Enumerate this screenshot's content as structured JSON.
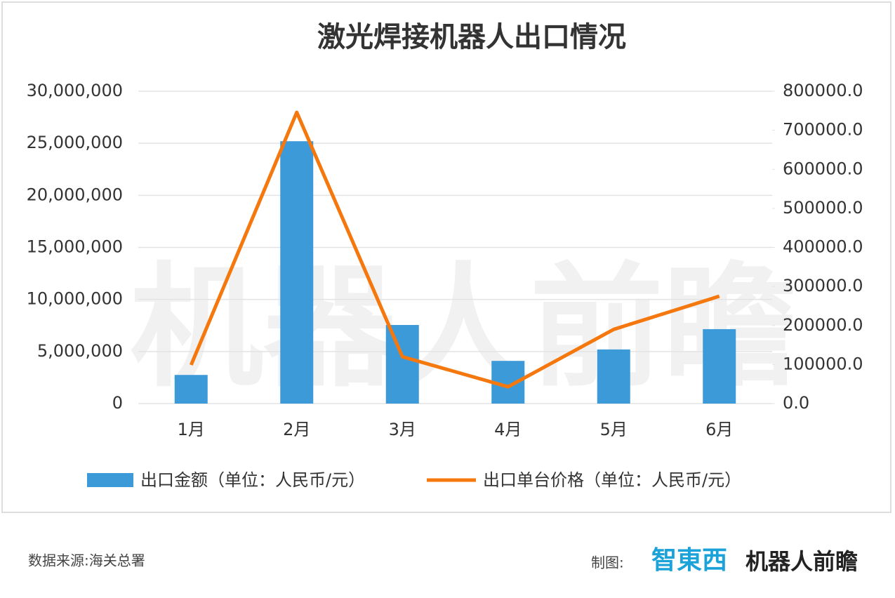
{
  "chart_data": {
    "type": "bar-line",
    "title": "激光焊接机器人出口情况",
    "categories": [
      "1月",
      "2月",
      "3月",
      "4月",
      "5月",
      "6月"
    ],
    "series": [
      {
        "name": "出口金额（单位：人民币/元）",
        "type": "bar",
        "color": "#3d9ad8",
        "values": [
          2750000,
          25200000,
          7550000,
          4100000,
          5200000,
          7150000
        ]
      },
      {
        "name": "出口单台价格（单位：人民币/元）",
        "type": "line",
        "axis": "y2",
        "color": "#f5780f",
        "values": [
          99000,
          746000,
          120000,
          43000,
          190000,
          275000
        ]
      }
    ],
    "ylim": [
      0,
      30000000
    ],
    "yticks": [
      0,
      {
        "value": 5000000,
        "label": "5,000,000"
      },
      {
        "value": 10000000,
        "label": "10,000,000"
      },
      {
        "value": 15000000,
        "label": "15,000,000"
      },
      {
        "value": 20000000,
        "label": "20,000,000"
      },
      {
        "value": 25000000,
        "label": "25,000,000"
      },
      {
        "value": 30000000,
        "label": "30,000,000"
      }
    ],
    "y2lim": [
      0,
      800000
    ],
    "y2ticks": [
      {
        "value": 0,
        "label": "0.0"
      },
      {
        "value": 100000,
        "label": "100000.0"
      },
      {
        "value": 200000,
        "label": "200000.0"
      },
      {
        "value": 300000,
        "label": "300000.0"
      },
      {
        "value": 400000,
        "label": "400000.0"
      },
      {
        "value": 500000,
        "label": "500000.0"
      },
      {
        "value": 600000,
        "label": "600000.0"
      },
      {
        "value": 700000,
        "label": "700000.0"
      },
      {
        "value": 800000,
        "label": "800000.0"
      }
    ],
    "grid": true,
    "legend": "bottom",
    "watermark": "机器人前瞻"
  },
  "footer": {
    "source": "数据来源:海关总署",
    "credit_label": "制图:",
    "logos": [
      "智東西",
      "机器人前瞻"
    ]
  }
}
